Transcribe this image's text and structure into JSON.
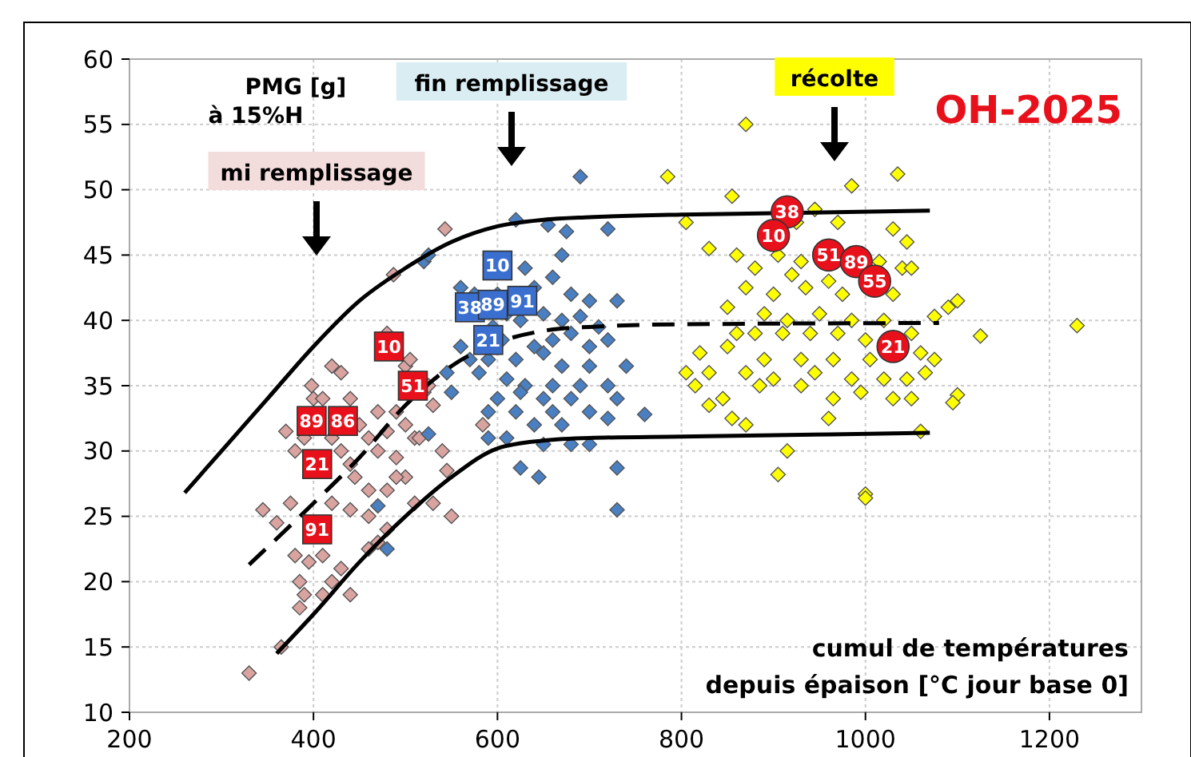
{
  "chart_data": {
    "type": "scatter",
    "title": "OH-2025",
    "xlabel": "cumul de températures\ndepuis épaison [°C jour base 0]",
    "ylabel": "PMG [g]\nà 15%H",
    "xlim": [
      200,
      1300
    ],
    "xticks": [
      200,
      400,
      600,
      800,
      1000,
      1200
    ],
    "ylim": [
      10,
      60
    ],
    "yticks": [
      10,
      15,
      20,
      25,
      30,
      35,
      40,
      45,
      50,
      55,
      60
    ],
    "grid": true,
    "marker": "diamond",
    "annotations": [
      "mi remplissage",
      "fin remplissage",
      "récolte",
      {
        "text": "10",
        "x": 482,
        "y": 38
      },
      {
        "text": "51",
        "x": 508,
        "y": 35
      },
      {
        "text": "89",
        "x": 398,
        "y": 32.3
      },
      {
        "text": "86",
        "x": 432,
        "y": 32.3
      },
      {
        "text": "21",
        "x": 404,
        "y": 29
      },
      {
        "text": "91",
        "x": 404,
        "y": 24
      },
      {
        "text": "10",
        "x": 600,
        "y": 44.2
      },
      {
        "text": "38",
        "x": 570,
        "y": 41
      },
      {
        "text": "89",
        "x": 595,
        "y": 41.2
      },
      {
        "text": "91",
        "x": 627,
        "y": 41.5
      },
      {
        "text": "21",
        "x": 590,
        "y": 38.5
      },
      {
        "text": "38",
        "x": 915,
        "y": 48.3
      },
      {
        "text": "10",
        "x": 900,
        "y": 46.5
      },
      {
        "text": "51",
        "x": 960,
        "y": 45
      },
      {
        "text": "89",
        "x": 990,
        "y": 44.5
      },
      {
        "text": "55",
        "x": 1010,
        "y": 43
      },
      {
        "text": "21",
        "x": 1030,
        "y": 38
      }
    ],
    "series": [
      {
        "color": "#d9a3a0",
        "x": [
          543,
          487,
          420,
          430,
          398,
          400,
          410,
          440,
          470,
          490,
          520,
          530,
          370,
          390,
          420,
          450,
          460,
          480,
          500,
          510,
          380,
          430,
          440,
          470,
          490,
          540,
          445,
          460,
          480,
          500,
          545,
          345,
          360,
          375,
          420,
          440,
          460,
          480,
          510,
          530,
          550,
          380,
          395,
          410,
          430,
          460,
          470,
          385,
          390,
          385,
          410,
          440,
          420,
          330,
          365,
          480,
          500,
          505,
          525,
          515,
          490,
          584
        ],
        "values": [
          47,
          43.5,
          36.5,
          36,
          35,
          34,
          34,
          34,
          33,
          33,
          34.5,
          33.5,
          31.5,
          31,
          31,
          32,
          31,
          31.5,
          32,
          31,
          30,
          30,
          29,
          30,
          29.5,
          30,
          28,
          27,
          27,
          28,
          28.5,
          25.5,
          24.5,
          26,
          26,
          25.5,
          25,
          24,
          26,
          26,
          25,
          22,
          21.5,
          22,
          21,
          22.5,
          23,
          20,
          19,
          18,
          19,
          19,
          20,
          13,
          15,
          39,
          36.5,
          37,
          35,
          31,
          28,
          32
        ]
      },
      {
        "color": "#4a7fc1",
        "x": [
          690,
          620,
          655,
          675,
          720,
          520,
          525,
          670,
          630,
          560,
          575,
          600,
          640,
          660,
          680,
          700,
          730,
          610,
          625,
          650,
          670,
          690,
          710,
          595,
          605,
          640,
          660,
          680,
          700,
          720,
          560,
          570,
          590,
          620,
          650,
          670,
          700,
          740,
          545,
          580,
          610,
          630,
          660,
          690,
          720,
          550,
          600,
          625,
          650,
          680,
          730,
          590,
          620,
          660,
          700,
          760,
          590,
          640,
          670,
          720,
          610,
          650,
          680,
          700,
          730,
          625,
          645,
          730,
          480,
          470,
          525
        ],
        "values": [
          51,
          47.7,
          47.3,
          46.8,
          47,
          44.5,
          45,
          45,
          44,
          42.5,
          42,
          42,
          42.5,
          43.3,
          42,
          41.5,
          41.5,
          40.5,
          40,
          40.5,
          40,
          40.3,
          39.5,
          39.5,
          38.5,
          38,
          38.5,
          39,
          38,
          38.5,
          38,
          37,
          37,
          37,
          37.5,
          36.5,
          36.5,
          36.5,
          36,
          36,
          35.5,
          35,
          35,
          35,
          35,
          34.5,
          34,
          34.5,
          34,
          34,
          34,
          33,
          33,
          33,
          33,
          32.8,
          31,
          32,
          32,
          32.5,
          31,
          30.5,
          30.5,
          30.5,
          28.7,
          28.7,
          28,
          25.5,
          22.5,
          25.8,
          31.3
        ]
      },
      {
        "color": "#ffff00",
        "x": [
          870,
          785,
          985,
          1035,
          855,
          805,
          945,
          925,
          970,
          1030,
          1045,
          830,
          860,
          905,
          930,
          1015,
          1040,
          1050,
          880,
          920,
          960,
          870,
          900,
          935,
          975,
          1030,
          1100,
          1090,
          1075,
          850,
          890,
          915,
          950,
          985,
          1020,
          860,
          880,
          910,
          940,
          970,
          1000,
          1050,
          1125,
          1230,
          820,
          850,
          890,
          930,
          965,
          1005,
          1060,
          1065,
          805,
          830,
          870,
          900,
          945,
          985,
          1020,
          1045,
          1075,
          815,
          845,
          885,
          930,
          965,
          995,
          1030,
          1050,
          1100,
          1095,
          830,
          855,
          870,
          960,
          1060,
          915,
          905,
          1000,
          1000
        ],
        "values": [
          55,
          51,
          50.3,
          51.2,
          49.5,
          47.5,
          48.5,
          47.5,
          47.5,
          47,
          46,
          45.5,
          45,
          45,
          44.5,
          44.5,
          44,
          44,
          44,
          43.5,
          43,
          42.5,
          42,
          42.5,
          42,
          42,
          41.5,
          41,
          40.3,
          41,
          40.5,
          40,
          40.5,
          40,
          40,
          39,
          39,
          39,
          39,
          39,
          38.5,
          39,
          38.8,
          39.6,
          37.5,
          38,
          37,
          37,
          37,
          37,
          37.5,
          36,
          36,
          36,
          36,
          35.5,
          36,
          35.5,
          35.5,
          35.5,
          37,
          35,
          34,
          35,
          35,
          34,
          34.5,
          34,
          34,
          34.3,
          33.7,
          33.5,
          32.5,
          32,
          32.5,
          31.5,
          30,
          28.2,
          26.7,
          26.4
        ]
      },
      {
        "type": "line",
        "color": "#000000",
        "line_style": "solid",
        "marker": "none",
        "x": [
          260,
          300,
          350,
          400,
          450,
          500,
          550,
          600,
          650,
          700,
          800,
          900,
          1070
        ],
        "values": [
          26.8,
          30,
          34,
          38,
          41.5,
          44,
          46,
          47.2,
          47.7,
          47.9,
          48.1,
          48.2,
          48.4
        ]
      },
      {
        "type": "line",
        "color": "#000000",
        "line_style": "dashed",
        "marker": "none",
        "x": [
          330,
          400,
          450,
          500,
          550,
          600,
          650,
          700,
          800,
          1080
        ],
        "values": [
          21.3,
          26,
          29.5,
          33.5,
          36.5,
          38.3,
          39.2,
          39.5,
          39.7,
          39.8
        ]
      },
      {
        "type": "line",
        "color": "#000000",
        "line_style": "solid",
        "marker": "none",
        "x": [
          360,
          400,
          450,
          500,
          550,
          600,
          650,
          700,
          800,
          1070
        ],
        "values": [
          14.5,
          17.5,
          21.5,
          25,
          28,
          30.2,
          30.8,
          31,
          31.1,
          31.4
        ]
      },
      {
        "color": "#e8111b",
        "marker": "square",
        "x": [
          482,
          508,
          398,
          432,
          404,
          404
        ],
        "values": [
          38,
          35,
          32.3,
          32.3,
          29,
          24
        ]
      },
      {
        "color": "#3a6fd0",
        "marker": "square",
        "x": [
          600,
          570,
          595,
          627,
          590
        ],
        "values": [
          44.2,
          41,
          41.2,
          41.5,
          38.5
        ]
      },
      {
        "color": "#e8111b",
        "marker": "circle",
        "x": [
          915,
          900,
          960,
          990,
          1010,
          1030
        ],
        "values": [
          48.3,
          46.5,
          45,
          44.5,
          43,
          38
        ]
      }
    ]
  }
}
